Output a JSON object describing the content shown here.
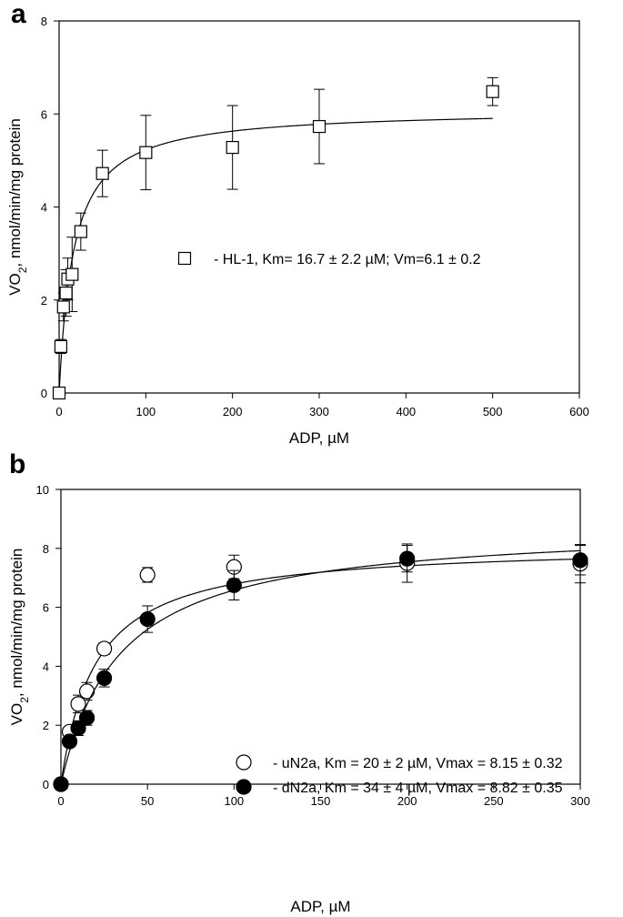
{
  "chart_data": [
    {
      "panel_label": "a",
      "type": "scatter",
      "xlabel": "ADP, µM",
      "ylabel": [
        "VO",
        "2",
        ", nmol/min/mg protein"
      ],
      "xlim": [
        0,
        600
      ],
      "ylim": [
        0,
        8
      ],
      "xticks": [
        0,
        100,
        200,
        300,
        400,
        500,
        600
      ],
      "yticks": [
        0,
        2,
        4,
        6,
        8
      ],
      "grid": false,
      "series": [
        {
          "marker": "square-open",
          "legend": "- HL-1, Km= 16.7 ± 2.2 µM; Vm=6.1 ± 0.2",
          "km": 16.7,
          "vmax": 6.1,
          "x": [
            0,
            2,
            5,
            8,
            10,
            15,
            25,
            50,
            100,
            200,
            300,
            500
          ],
          "y": [
            0,
            1.0,
            1.85,
            2.15,
            2.45,
            2.55,
            3.47,
            4.72,
            5.17,
            5.28,
            5.73,
            6.48
          ],
          "err": [
            0,
            0.15,
            0.3,
            0.5,
            0.45,
            0.8,
            0.4,
            0.5,
            0.8,
            0.9,
            0.8,
            0.3
          ]
        }
      ]
    },
    {
      "panel_label": "b",
      "type": "scatter",
      "xlabel": "ADP, µM",
      "ylabel": [
        "VO",
        "2",
        ", nmol/min/mg protein"
      ],
      "xlim": [
        0,
        300
      ],
      "ylim": [
        0,
        10
      ],
      "xticks": [
        0,
        50,
        100,
        150,
        200,
        250,
        300
      ],
      "yticks": [
        0,
        2,
        4,
        6,
        8,
        10
      ],
      "grid": false,
      "series": [
        {
          "marker": "circle-open",
          "legend": "- uN2a, Km = 20 ± 2 µM, Vmax = 8.15 ± 0.32",
          "km": 20,
          "vmax": 8.15,
          "x": [
            0,
            5,
            10,
            15,
            25,
            50,
            100,
            200,
            300
          ],
          "y": [
            0,
            1.78,
            2.72,
            3.15,
            4.6,
            7.1,
            7.37,
            7.5,
            7.48
          ],
          "err": [
            0,
            0.1,
            0.3,
            0.3,
            0.2,
            0.25,
            0.4,
            0.65,
            0.65
          ]
        },
        {
          "marker": "circle-filled",
          "legend": "- dN2a, Km = 34 ± 4 µM, Vmax = 8.82 ± 0.35",
          "km": 34,
          "vmax": 8.82,
          "x": [
            0,
            5,
            10,
            15,
            25,
            50,
            100,
            200,
            300
          ],
          "y": [
            0,
            1.45,
            1.9,
            2.25,
            3.6,
            5.6,
            6.75,
            7.65,
            7.6
          ],
          "err": [
            0,
            0.15,
            0.25,
            0.25,
            0.3,
            0.45,
            0.5,
            0.45,
            0.5
          ]
        }
      ]
    }
  ]
}
